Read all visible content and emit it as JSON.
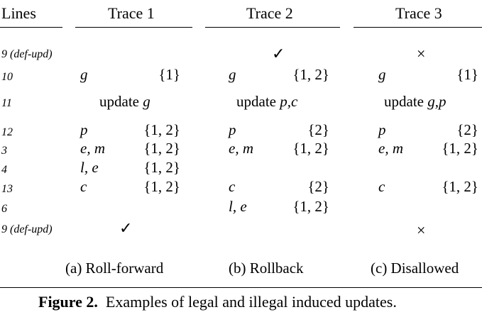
{
  "headers": {
    "lines": "Lines",
    "trace1": "Trace 1",
    "trace2": "Trace 2",
    "trace3": "Trace 3"
  },
  "rows": {
    "r9a": {
      "line": "9 (def-upd)",
      "t2_mark": "✓",
      "t3_mark": "×"
    },
    "r10": {
      "line": "10",
      "t1_var": "g",
      "t1_set": "{1}",
      "t2_var": "g",
      "t2_set": "{1, 2}",
      "t3_var": "g",
      "t3_set": "{1}"
    },
    "r11": {
      "line": "11",
      "t1_word": "update",
      "t1_vars": "g",
      "t2_word": "update",
      "t2_vars": "p,c",
      "t3_word": "update",
      "t3_vars": "g,p"
    },
    "r12": {
      "line": "12",
      "t1_var": "p",
      "t1_set": "{1, 2}",
      "t2_var": "p",
      "t2_set": "{2}",
      "t3_var": "p",
      "t3_set": "{2}"
    },
    "r3": {
      "line": "3",
      "t1_var": "e, m",
      "t1_set": "{1, 2}",
      "t2_var": "e, m",
      "t2_set": "{1, 2}",
      "t3_var": "e, m",
      "t3_set": "{1, 2}"
    },
    "r4": {
      "line": "4",
      "t1_var": "l, e",
      "t1_set": "{1, 2}"
    },
    "r13": {
      "line": "13",
      "t1_var": "c",
      "t1_set": "{1, 2}",
      "t2_var": "c",
      "t2_set": "{2}",
      "t3_var": "c",
      "t3_set": "{1, 2}"
    },
    "r6": {
      "line": "6",
      "t2_var": "l, e",
      "t2_set": "{1, 2}"
    },
    "r9b": {
      "line": "9 (def-upd)",
      "t1_mark": "✓",
      "t3_mark": "×"
    }
  },
  "subcaptions": {
    "a": "(a) Roll-forward",
    "b": "(b) Rollback",
    "c": "(c) Disallowed"
  },
  "figure_caption": {
    "label": "Figure 2.",
    "text": "Examples of legal and illegal induced updates."
  }
}
